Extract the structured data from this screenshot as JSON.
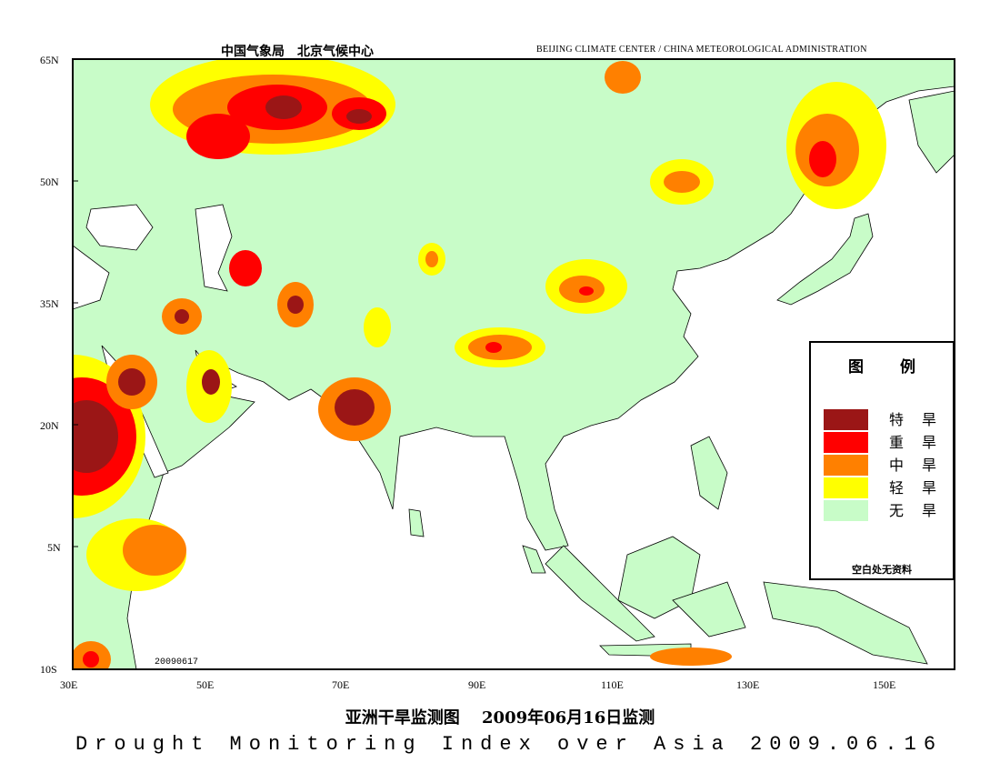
{
  "header": {
    "cn": "中国气象局　北京气候中心",
    "en": "BEIJING CLIMATE CENTER / CHINA METEOROLOGICAL ADMINISTRATION"
  },
  "map": {
    "lat_labels": [
      "65N",
      "50N",
      "35N",
      "20N",
      "5N",
      "10S"
    ],
    "lon_labels": [
      "30E",
      "50E",
      "70E",
      "90E",
      "110E",
      "130E",
      "150E"
    ],
    "stamp": "20090617",
    "colors": {
      "land": "#c8fcc8",
      "extreme": "#9b1616",
      "severe": "#ff0000",
      "moderate": "#ff8000",
      "light": "#ffff00",
      "none": "#c8fcc8",
      "nodata": "#ffffff"
    }
  },
  "legend": {
    "title": "图 例",
    "items": [
      {
        "label": "特旱",
        "color": "#9b1616"
      },
      {
        "label": "重旱",
        "color": "#ff0000"
      },
      {
        "label": "中旱",
        "color": "#ff8000"
      },
      {
        "label": "轻旱",
        "color": "#ffff00"
      },
      {
        "label": "无旱",
        "color": "#c8fcc8"
      }
    ],
    "note": "空白处无资料"
  },
  "footer": {
    "title_cn": "亚洲干旱监测图　 2009年06月16日监测",
    "title_en": "Drought Monitoring Index over Asia  2009.06.16"
  }
}
